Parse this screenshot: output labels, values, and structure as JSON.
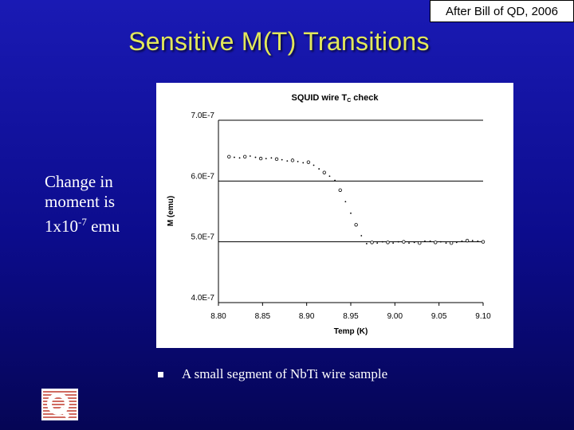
{
  "credit": "After Bill of QD, 2006",
  "title": "Sensitive M(T) Transitions",
  "side_note": {
    "line1": "Change in",
    "line2": "moment is",
    "prefix": "1x10",
    "exponent": "-7",
    "suffix": " emu"
  },
  "caption": "A small segment of NbTi wire sample",
  "logo_icon": "quantum-design-q-logo",
  "colors": {
    "title": "#e2e85a",
    "background": "#0c0c8c"
  },
  "chart_data": {
    "type": "scatter",
    "title_main": "SQUID wire T",
    "title_sub": "C",
    "title_tail": " check",
    "xlabel": "Temp (K)",
    "ylabel": "M (emu)",
    "xlim": [
      8.8,
      9.1
    ],
    "ylim": [
      4e-07,
      7e-07
    ],
    "xticks": [
      8.8,
      8.85,
      8.9,
      8.95,
      9.0,
      9.05,
      9.1
    ],
    "xtick_labels": [
      "8.80",
      "8.85",
      "8.90",
      "8.95",
      "9.00",
      "9.05",
      "9.10"
    ],
    "yticks": [
      4e-07,
      5e-07,
      6e-07,
      7e-07
    ],
    "ytick_labels": [
      "4.0E-7",
      "5.0E-7",
      "6.0E-7",
      "7.0E-7"
    ],
    "grid": "horizontal",
    "series": [
      {
        "x": [
          8.812,
          8.818,
          8.824,
          8.83,
          8.836,
          8.842,
          8.848,
          8.854,
          8.86,
          8.866,
          8.872,
          8.878,
          8.884,
          8.89,
          8.896,
          8.902,
          8.908,
          8.914,
          8.92,
          8.926,
          8.932,
          8.938,
          8.944,
          8.95,
          8.956,
          8.962,
          8.968,
          8.974,
          8.98,
          8.986,
          8.992,
          8.998,
          9.004,
          9.01,
          9.016,
          9.022,
          9.028,
          9.034,
          9.04,
          9.046,
          9.052,
          9.058,
          9.064,
          9.07,
          9.076,
          9.082,
          9.088,
          9.094,
          9.1
        ],
        "y": [
          6.4e-07,
          6.39e-07,
          6.38e-07,
          6.4e-07,
          6.41e-07,
          6.39e-07,
          6.37e-07,
          6.37e-07,
          6.38e-07,
          6.36e-07,
          6.35e-07,
          6.33e-07,
          6.34e-07,
          6.32e-07,
          6.3e-07,
          6.31e-07,
          6.26e-07,
          6.2e-07,
          6.14e-07,
          6.08e-07,
          6.01e-07,
          5.85e-07,
          5.66e-07,
          5.47e-07,
          5.28e-07,
          5.1e-07,
          4.97e-07,
          4.99e-07,
          4.98e-07,
          5e-07,
          4.99e-07,
          4.98e-07,
          5e-07,
          5e-07,
          4.98e-07,
          4.99e-07,
          4.98e-07,
          5.01e-07,
          5.01e-07,
          4.99e-07,
          5e-07,
          4.98e-07,
          4.98e-07,
          4.99e-07,
          5.01e-07,
          5.02e-07,
          5.02e-07,
          5.01e-07,
          5e-07
        ]
      }
    ]
  }
}
